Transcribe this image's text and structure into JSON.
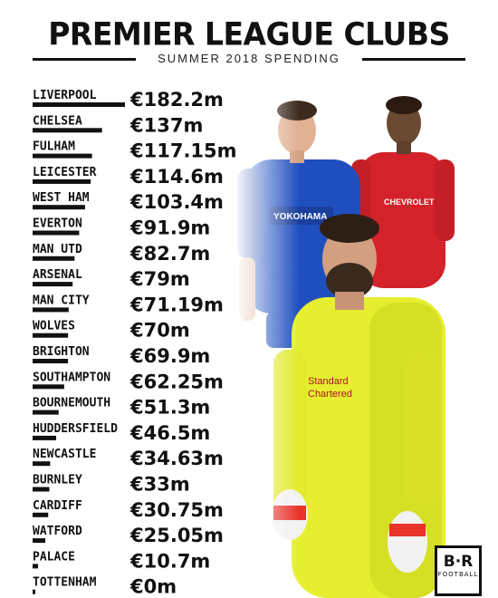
{
  "title": "PREMIER LEAGUE CLUBS",
  "subtitle": "SUMMER 2018 SPENDING",
  "logo": {
    "main": "B·R",
    "sub": "FOOTBALL"
  },
  "chart_data": {
    "type": "bar",
    "title": "PREMIER LEAGUE CLUBS",
    "subtitle": "SUMMER 2018 SPENDING",
    "categories": [
      "LIVERPOOL",
      "CHELSEA",
      "FULHAM",
      "LEICESTER",
      "WEST HAM",
      "EVERTON",
      "MAN UTD",
      "ARSENAL",
      "MAN CITY",
      "WOLVES",
      "BRIGHTON",
      "SOUTHAMPTON",
      "BOURNEMOUTH",
      "HUDDERSFIELD",
      "NEWCASTLE",
      "BURNLEY",
      "CARDIFF",
      "WATFORD",
      "PALACE",
      "TOTTENHAM"
    ],
    "values": [
      182.2,
      137,
      117.15,
      114.6,
      103.4,
      91.9,
      82.7,
      79,
      71.19,
      70,
      69.9,
      62.25,
      51.3,
      46.5,
      34.63,
      33,
      30.75,
      25.05,
      10.7,
      0
    ],
    "value_labels": [
      "€182.2m",
      "€137m",
      "€117.15m",
      "€114.6m",
      "€103.4m",
      "€91.9m",
      "€82.7m",
      "€79m",
      "€71.19m",
      "€70m",
      "€69.9m",
      "€62.25m",
      "€51.3m",
      "€46.5m",
      "€34.63m",
      "€33m",
      "€30.75m",
      "€25.05m",
      "€10.7m",
      "€0m"
    ],
    "orientation": "horizontal",
    "unit": "€m",
    "bar_color": "#111111"
  }
}
